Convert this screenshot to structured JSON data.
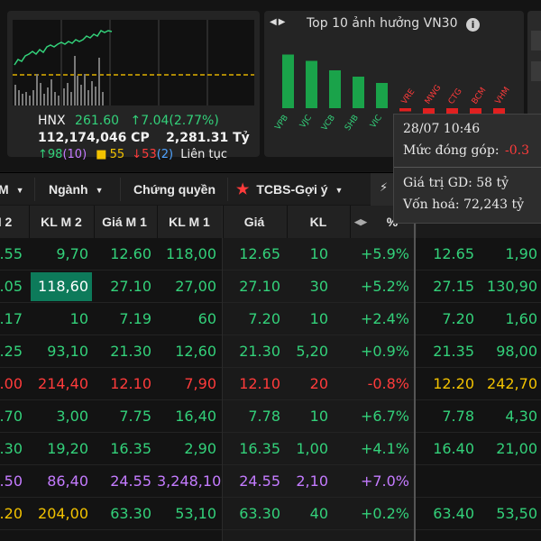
{
  "index_panel": {
    "name": "HNX",
    "value": "261.60",
    "change": "7.04(2.77%)",
    "volume": "112,174,046 CP",
    "turnover": "2,281.31 Tỷ",
    "advances": "98",
    "advances_ceiling": "(10)",
    "unchanged": "55",
    "declines": "53",
    "declines_floor": "(2)",
    "session": "Liên tục"
  },
  "top10": {
    "title": "Top 10 ảnh hưởng VN30",
    "info_icon": "i",
    "nav_icons": "◀▶",
    "bars": [
      {
        "label": "VPB",
        "value": 8.5,
        "color": "#1aa34a"
      },
      {
        "label": "VJC",
        "value": 7.5,
        "color": "#1aa34a"
      },
      {
        "label": "VCB",
        "value": 6.0,
        "color": "#1aa34a"
      },
      {
        "label": "SHB",
        "value": 5.0,
        "color": "#1aa34a"
      },
      {
        "label": "VIC",
        "value": 4.0,
        "color": "#1aa34a"
      },
      {
        "label": "VRE",
        "value": -0.5,
        "color": "#e02020"
      },
      {
        "label": "MWG",
        "value": -1.0,
        "color": "#e02020"
      },
      {
        "label": "CTG",
        "value": -1.6,
        "color": "#e02020"
      },
      {
        "label": "BCM",
        "value": -2.0,
        "color": "#e02020"
      },
      {
        "label": "VHM",
        "value": -3.0,
        "color": "#e02020"
      }
    ]
  },
  "tooltip": {
    "time": "28/07 10:46",
    "contrib_label": "Mức đóng góp:",
    "contrib_value": "-0.3",
    "gtgd": "Giá trị GD: 58 tỷ",
    "vonhoa": "Vốn hoá: 72,243 tỷ"
  },
  "tabs": [
    {
      "label": "M",
      "caret": true
    },
    {
      "label": "Ngành",
      "caret": true
    },
    {
      "label": "Chứng quyền",
      "caret": false
    },
    {
      "label": "TCBS-Gợi ý",
      "caret": true
    }
  ],
  "headers": [
    "M 2",
    "KL M 2",
    "Giá M 1",
    "KL M 1",
    "Giá",
    "KL",
    "%"
  ],
  "colors": {
    "green": "#33d17a",
    "red": "#ff3b3b",
    "yellow": "#f2c200",
    "purple": "#c47bff",
    "highlight": "#0d7a5a"
  },
  "rows": [
    {
      "c0": ".55",
      "c1": "9,70",
      "c2": "12.60",
      "c3": "118,00",
      "c4": "12.65",
      "c5": "10",
      "c6": "+5.9%",
      "c7": "12.65",
      "c8": "1,90",
      "color": "green"
    },
    {
      "c0": ".05",
      "c1": "118,60",
      "c2": "27.10",
      "c3": "27,00",
      "c4": "27.10",
      "c5": "30",
      "c6": "+5.2%",
      "c7": "27.15",
      "c8": "130,90",
      "color": "green",
      "hl": true
    },
    {
      "c0": ".17",
      "c1": "10",
      "c2": "7.19",
      "c3": "60",
      "c4": "7.20",
      "c5": "10",
      "c6": "+2.4%",
      "c7": "7.20",
      "c8": "1,60",
      "color": "green"
    },
    {
      "c0": ".25",
      "c1": "93,10",
      "c2": "21.30",
      "c3": "12,60",
      "c4": "21.30",
      "c5": "5,20",
      "c6": "+0.9%",
      "c7": "21.35",
      "c8": "98,00",
      "color": "green"
    },
    {
      "c0": ".00",
      "c1": "214,40",
      "c2": "12.10",
      "c3": "7,90",
      "c4": "12.10",
      "c5": "20",
      "c6": "-0.8%",
      "c7": "12.20",
      "c8": "242,70",
      "color": "red",
      "c7color": "yellow",
      "c8color": "yellow"
    },
    {
      "c0": ".70",
      "c1": "3,00",
      "c2": "7.75",
      "c3": "16,40",
      "c4": "7.78",
      "c5": "10",
      "c6": "+6.7%",
      "c7": "7.78",
      "c8": "4,30",
      "color": "green"
    },
    {
      "c0": ".30",
      "c1": "19,20",
      "c2": "16.35",
      "c3": "2,90",
      "c4": "16.35",
      "c5": "1,00",
      "c6": "+4.1%",
      "c7": "16.40",
      "c8": "21,00",
      "color": "green"
    },
    {
      "c0": ".50",
      "c1": "86,40",
      "c2": "24.55",
      "c3": "3,248,10",
      "c4": "24.55",
      "c5": "2,10",
      "c6": "+7.0%",
      "c7": "",
      "c8": "",
      "color": "purple"
    },
    {
      "c0": ".20",
      "c1": "204,00",
      "c2": "63.30",
      "c3": "53,10",
      "c4": "63.30",
      "c5": "40",
      "c6": "+0.2%",
      "c7": "63.40",
      "c8": "53,50",
      "color": "green",
      "c0color": "yellow",
      "c1color": "yellow"
    }
  ]
}
